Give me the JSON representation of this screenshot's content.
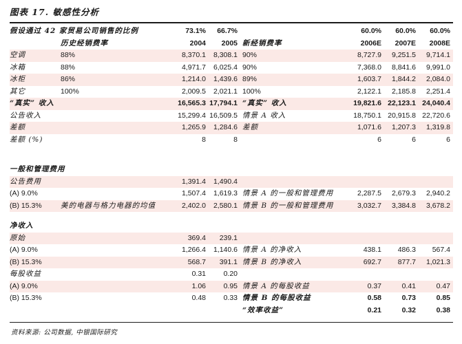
{
  "title": "图表 17. 敏感性分析",
  "footer": {
    "source": "资料来源: 公司数据, 中银国际研究"
  },
  "colors": {
    "row_pink": "#FBE9E6",
    "rule": "#1A1A1A",
    "text": "#1A1A1A"
  },
  "table": {
    "column_names": [
      "item",
      "hist-rate",
      "y2004",
      "y2005",
      "scenario",
      "y2006e",
      "y2007e",
      "y2008e"
    ],
    "rows": [
      {
        "type": "data",
        "bg": "white",
        "bold": true,
        "cells": [
          "假设通过 42 家贸易公司销售的比例",
          "",
          "73.1%",
          "66.7%",
          "",
          "60.0%",
          "60.0%",
          "60.0%"
        ]
      },
      {
        "type": "data",
        "bg": "white",
        "bold": true,
        "cells": [
          "",
          "历史经销费率",
          "2004",
          "2005",
          "新经销费率",
          "2006E",
          "2007E",
          "2008E"
        ]
      },
      {
        "type": "data",
        "bg": "pink",
        "bold": false,
        "cells": [
          "空调",
          "88%",
          "8,370.1",
          "8,308.1",
          "90%",
          "8,727.9",
          "9,251.5",
          "9,714.1"
        ]
      },
      {
        "type": "data",
        "bg": "white",
        "bold": false,
        "cells": [
          "冰箱",
          "88%",
          "4,971.7",
          "6,025.4",
          "90%",
          "7,368.0",
          "8,841.6",
          "9,991.0"
        ]
      },
      {
        "type": "data",
        "bg": "pink",
        "bold": false,
        "cells": [
          "冰柜",
          "86%",
          "1,214.0",
          "1,439.6",
          "89%",
          "1,603.7",
          "1,844.2",
          "2,084.0"
        ]
      },
      {
        "type": "data",
        "bg": "white",
        "bold": false,
        "cells": [
          "其它",
          "100%",
          "2,009.5",
          "2,021.1",
          "100%",
          "2,122.1",
          "2,185.8",
          "2,251.4"
        ]
      },
      {
        "type": "data",
        "bg": "pink",
        "bold": true,
        "cells": [
          "“真实” 收入",
          "",
          "16,565.3",
          "17,794.1",
          "“真实” 收入",
          "19,821.6",
          "22,123.1",
          "24,040.4"
        ]
      },
      {
        "type": "data",
        "bg": "white",
        "bold": false,
        "cells": [
          "公告收入",
          "",
          "15,299.4",
          "16,509.5",
          "情景 A 收入",
          "18,750.1",
          "20,915.8",
          "22,720.6"
        ]
      },
      {
        "type": "data",
        "bg": "pink",
        "bold": false,
        "cells": [
          "差额",
          "",
          "1,265.9",
          "1,284.6",
          "差额",
          "1,071.6",
          "1,207.3",
          "1,319.8"
        ]
      },
      {
        "type": "data",
        "bg": "white",
        "bold": false,
        "cells": [
          "差额 (%)",
          "",
          "8",
          "8",
          "",
          "6",
          "6",
          "6"
        ]
      },
      {
        "type": "gap",
        "size": 26
      },
      {
        "type": "section",
        "label": "一般和管理费用"
      },
      {
        "type": "data",
        "bg": "pink",
        "bold": false,
        "cells": [
          "公告费用",
          "",
          "1,391.4",
          "1,490.4",
          "",
          "",
          "",
          ""
        ]
      },
      {
        "type": "data",
        "bg": "white",
        "bold": false,
        "cells": [
          "(A) 9.0%",
          "",
          "1,507.4",
          "1,619.3",
          "情景 A 的一般和管理费用",
          "2,287.5",
          "2,679.3",
          "2,940.2"
        ]
      },
      {
        "type": "data",
        "bg": "pink",
        "bold": false,
        "cells": [
          "(B) 15.3%",
          "美的电器与格力电器的均值",
          "2,402.0",
          "2,580.1",
          "情景 B 的一般和管理费用",
          "3,032.7",
          "3,384.8",
          "3,678.2"
        ]
      },
      {
        "type": "gap",
        "size": 12
      },
      {
        "type": "section",
        "label": "净收入"
      },
      {
        "type": "data",
        "bg": "pink",
        "bold": false,
        "cells": [
          "原始",
          "",
          "369.4",
          "239.1",
          "",
          "",
          "",
          ""
        ]
      },
      {
        "type": "data",
        "bg": "white",
        "bold": false,
        "cells": [
          "(A) 9.0%",
          "",
          "1,266.4",
          "1,140.6",
          "情景 A 的净收入",
          "438.1",
          "486.3",
          "567.4"
        ]
      },
      {
        "type": "data",
        "bg": "pink",
        "bold": false,
        "cells": [
          "(B) 15.3%",
          "",
          "568.7",
          "391.1",
          "情景 B 的净收入",
          "692.7",
          "877.7",
          "1,021.3"
        ]
      },
      {
        "type": "data",
        "bg": "white",
        "bold": false,
        "cells": [
          "每股收益",
          "",
          "0.31",
          "0.20",
          "",
          "",
          "",
          ""
        ]
      },
      {
        "type": "data",
        "bg": "pink",
        "bold": false,
        "cells": [
          "(A) 9.0%",
          "",
          "1.06",
          "0.95",
          "情景 A 的每股收益",
          "0.37",
          "0.41",
          "0.47"
        ]
      },
      {
        "type": "data",
        "bg": "white",
        "bold": false,
        "bold_cells": [
          4,
          5,
          6,
          7
        ],
        "cells": [
          "(B) 15.3%",
          "",
          "0.48",
          "0.33",
          "情景 B 的每股收益",
          "0.58",
          "0.73",
          "0.85"
        ]
      },
      {
        "type": "data",
        "bg": "white",
        "bold": false,
        "bold_cells": [
          4,
          5,
          6,
          7
        ],
        "cells": [
          "",
          "",
          "",
          "",
          "“效率收益”",
          "0.21",
          "0.32",
          "0.38"
        ]
      }
    ]
  }
}
